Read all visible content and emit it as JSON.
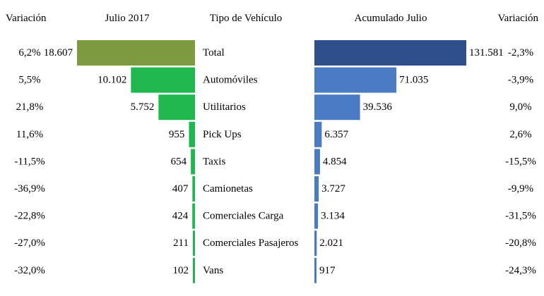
{
  "chart_data": {
    "type": "bar",
    "headers": {
      "variation_left": "Variación",
      "month": "Julio 2017",
      "category": "Tipo de Vehículo",
      "accumulated": "Acumulado Julio",
      "variation_right": "Variación"
    },
    "categories": [
      "Total",
      "Automóviles",
      "Utilitarios",
      "Pick Ups",
      "Taxis",
      "Camionetas",
      "Comerciales Carga",
      "Comerciales Pasajeros",
      "Vans"
    ],
    "series": [
      {
        "key": "month",
        "values": [
          18607,
          10102,
          5752,
          955,
          654,
          407,
          424,
          211,
          102
        ],
        "value_labels": [
          "18.607",
          "10.102",
          "5.752",
          "955",
          "654",
          "407",
          "424",
          "211",
          "102"
        ],
        "variation": [
          "6,2%",
          "5,5%",
          "21,8%",
          "11,6%",
          "-11,5%",
          "-36,9%",
          "-22,8%",
          "-27,0%",
          "-32,0%"
        ],
        "total_color": "#7e9a3e",
        "color": "#1fb84f"
      },
      {
        "key": "accumulated",
        "values": [
          131581,
          71035,
          39536,
          6357,
          4854,
          3727,
          3134,
          2021,
          917
        ],
        "value_labels": [
          "131.581",
          "71.035",
          "39.536",
          "6.357",
          "4.854",
          "3.727",
          "3.134",
          "2.021",
          "917"
        ],
        "variation": [
          "-2,3%",
          "-3,9%",
          "9,0%",
          "2,6%",
          "-15,5%",
          "-9,9%",
          "-31,5%",
          "-20,8%",
          "-24,3%"
        ],
        "total_color": "#2e4f8c",
        "color": "#4a7bc4"
      }
    ]
  }
}
